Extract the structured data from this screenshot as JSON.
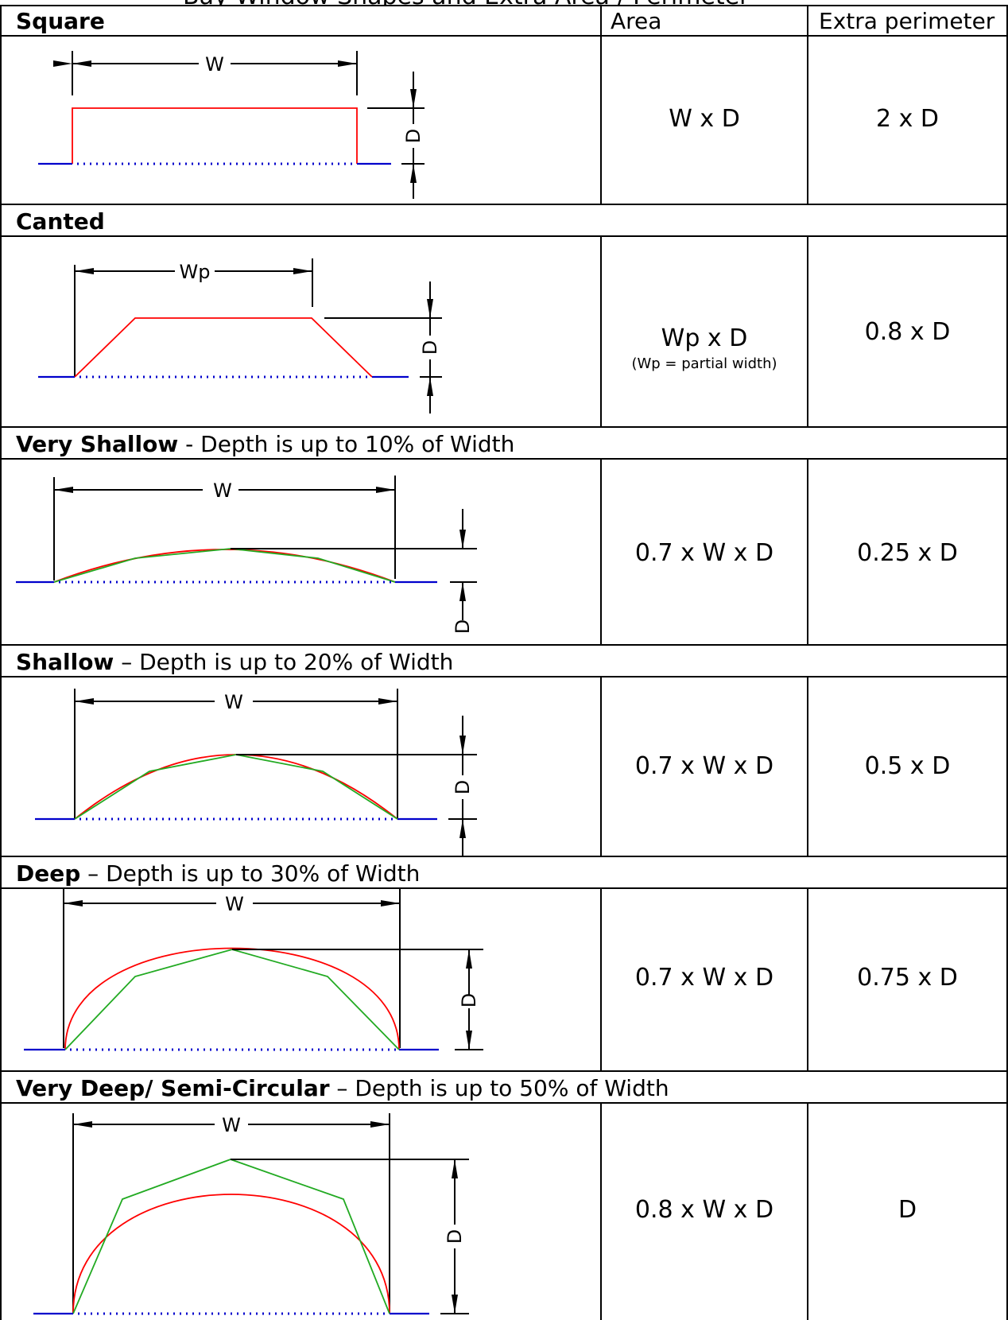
{
  "top_title": "Bay Window Shapes and Extra Area / Perimeter",
  "columns": {
    "area": "Area",
    "extra_perimeter": "Extra perimeter"
  },
  "sections": [
    {
      "title": "Square",
      "subtitle": "",
      "width_label": "W",
      "depth_label": "D",
      "area": "W x D",
      "area_note": "",
      "extra_perimeter": "2 x D"
    },
    {
      "title": "Canted",
      "subtitle": "",
      "width_label": "Wp",
      "depth_label": "D",
      "area": "Wp x D",
      "area_note": "(Wp = partial width)",
      "extra_perimeter": "0.8 x D"
    },
    {
      "title": "Very Shallow",
      "subtitle": " - Depth is up to 10% of Width",
      "width_label": "W",
      "depth_label": "D",
      "area": "0.7 x W x D",
      "area_note": "",
      "extra_perimeter": "0.25 x D"
    },
    {
      "title": "Shallow",
      "subtitle": " – Depth is up to 20% of Width",
      "width_label": "W",
      "depth_label": "D",
      "area": "0.7 x W x D",
      "area_note": "",
      "extra_perimeter": "0.5 x D"
    },
    {
      "title": "Deep",
      "subtitle": " – Depth is up to 30% of Width",
      "width_label": "W",
      "depth_label": "D",
      "area": "0.7 x W x D",
      "area_note": "",
      "extra_perimeter": "0.75 x D"
    },
    {
      "title": "Very Deep/ Semi-Circular",
      "subtitle": " – Depth is up to 50% of Width",
      "width_label": "W",
      "depth_label": "D",
      "area": "0.8 x W x D",
      "area_note": "",
      "extra_perimeter": "D"
    }
  ],
  "colors": {
    "shape": "#ff0000",
    "polygon": "#22aa22",
    "base": "#0000cc",
    "lines": "#000000"
  }
}
